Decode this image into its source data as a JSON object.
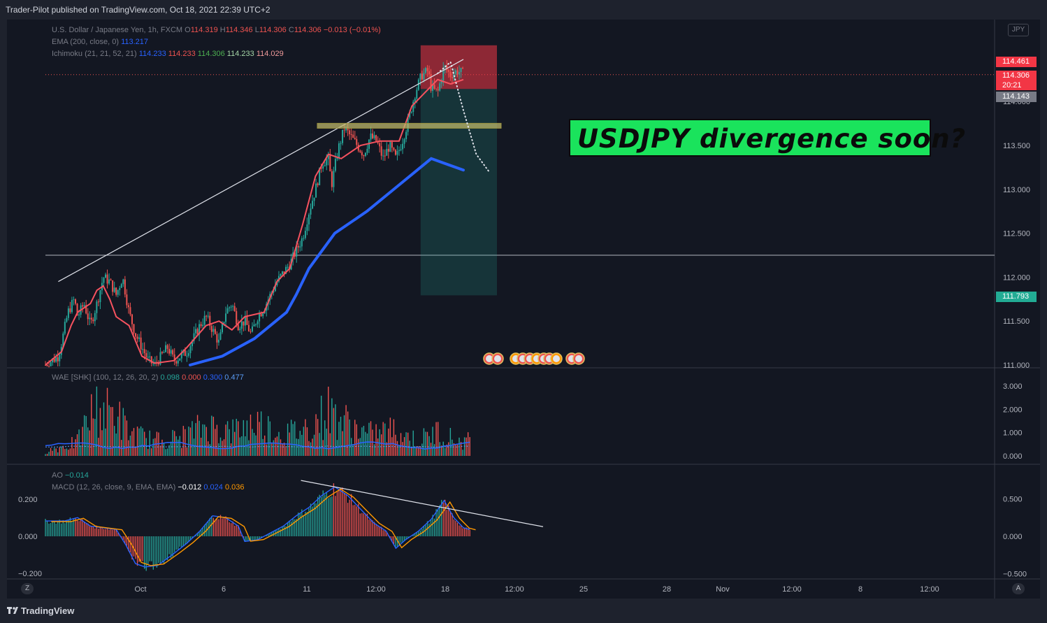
{
  "header": {
    "published": "Trader-Pilot published on TradingView.com, Oct 18, 2021 22:39 UTC+2"
  },
  "footer": {
    "brand": "TradingView",
    "left_btn": "Z",
    "right_btn": "A"
  },
  "legend": {
    "symbol": "U.S. Dollar / Japanese Yen, 1h, FXCM",
    "ohlc": [
      {
        "k": "O",
        "v": "114.319"
      },
      {
        "k": "H",
        "v": "114.346"
      },
      {
        "k": "L",
        "v": "114.306"
      },
      {
        "k": "C",
        "v": "114.306"
      }
    ],
    "change": "−0.013 (−0.01%)",
    "ema_label": "EMA (200, close, 0)",
    "ema_value": "113.217",
    "ichimoku_label": "Ichimoku (21, 21, 52, 21)",
    "ichimoku_values": [
      "114.233",
      "114.233",
      "114.306",
      "114.233",
      "114.029"
    ],
    "wae_label": "WAE [SHK] (100, 12, 26, 20, 2)",
    "wae_values": [
      "0.098",
      "0.000",
      "0.300",
      "0.477"
    ],
    "ao_label": "AO",
    "ao_value": "−0.014",
    "macd_label": "MACD (12, 26, close, 9, EMA, EMA)",
    "macd_values": [
      "−0.012",
      "0.024",
      "0.036"
    ]
  },
  "currency_badge": "JPY",
  "annotation": "USDJPY divergence soon?",
  "price_tags": [
    {
      "label": "114.461",
      "color": "#f23645",
      "value": 114.461
    },
    {
      "label": "114.306",
      "sub": "20:21",
      "color": "#f23645",
      "value": 114.306
    },
    {
      "label": "114.143",
      "color": "#787b86",
      "value": 114.143
    },
    {
      "label": "111.793",
      "color": "#22ab94",
      "value": 111.793
    }
  ],
  "colors": {
    "up": "#26a69a",
    "down": "#ef5350",
    "ema": "#2962ff",
    "kijun": "#f7525f",
    "bg": "#131722"
  },
  "chart_data": [
    {
      "type": "candlestick",
      "pane": "price",
      "title": "U.S. Dollar / Japanese Yen, 1h, FXCM",
      "ylim": [
        111.0,
        114.6
      ],
      "y_ticks": [
        "114.000",
        "113.500",
        "113.000",
        "112.500",
        "112.000",
        "111.500",
        "111.000"
      ],
      "y_tick_values": [
        114.0,
        113.5,
        113.0,
        112.5,
        112.0,
        111.5,
        111.0
      ],
      "x_ticks": [
        "Oct",
        "6",
        "11",
        "12:00",
        "18",
        "12:00",
        "25",
        "28",
        "Nov",
        "12:00",
        "8",
        "12:00"
      ],
      "price_path": [
        [
          0,
          111.0
        ],
        [
          2,
          111.05
        ],
        [
          4,
          111.1
        ],
        [
          5,
          111.25
        ],
        [
          7,
          111.6
        ],
        [
          9,
          111.75
        ],
        [
          10,
          111.55
        ],
        [
          12,
          111.7
        ],
        [
          14,
          111.45
        ],
        [
          16,
          111.7
        ],
        [
          18,
          112.0
        ],
        [
          20,
          111.95
        ],
        [
          22,
          111.8
        ],
        [
          24,
          112.0
        ],
        [
          26,
          111.6
        ],
        [
          28,
          111.35
        ],
        [
          30,
          111.2
        ],
        [
          32,
          111.05
        ],
        [
          34,
          111.0
        ],
        [
          36,
          111.1
        ],
        [
          38,
          111.2
        ],
        [
          40,
          111.05
        ],
        [
          42,
          111.1
        ],
        [
          44,
          111.15
        ],
        [
          46,
          111.3
        ],
        [
          48,
          111.45
        ],
        [
          50,
          111.55
        ],
        [
          52,
          111.4
        ],
        [
          54,
          111.25
        ],
        [
          56,
          111.6
        ],
        [
          58,
          111.7
        ],
        [
          60,
          111.45
        ],
        [
          62,
          111.5
        ],
        [
          64,
          111.35
        ],
        [
          66,
          111.55
        ],
        [
          68,
          111.65
        ],
        [
          70,
          111.8
        ],
        [
          72,
          111.95
        ],
        [
          74,
          112.05
        ],
        [
          76,
          112.15
        ],
        [
          78,
          112.3
        ],
        [
          80,
          112.45
        ],
        [
          82,
          112.75
        ],
        [
          84,
          113.0
        ],
        [
          86,
          113.3
        ],
        [
          88,
          113.35
        ],
        [
          89,
          113.05
        ],
        [
          91,
          113.45
        ],
        [
          93,
          113.7
        ],
        [
          95,
          113.6
        ],
        [
          97,
          113.5
        ],
        [
          99,
          113.4
        ],
        [
          101,
          113.6
        ],
        [
          103,
          113.55
        ],
        [
          105,
          113.35
        ],
        [
          107,
          113.5
        ],
        [
          109,
          113.35
        ],
        [
          111,
          113.55
        ],
        [
          113,
          113.8
        ],
        [
          115,
          114.1
        ],
        [
          117,
          114.3
        ],
        [
          119,
          114.35
        ],
        [
          120,
          114.15
        ],
        [
          122,
          114.1
        ],
        [
          124,
          114.4
        ],
        [
          126,
          114.3
        ],
        [
          128,
          114.35
        ],
        [
          130,
          114.32
        ]
      ],
      "ema200_path": [
        [
          45,
          111.0
        ],
        [
          55,
          111.1
        ],
        [
          65,
          111.3
        ],
        [
          75,
          111.6
        ],
        [
          78,
          111.8
        ],
        [
          82,
          112.1
        ],
        [
          90,
          112.5
        ],
        [
          100,
          112.75
        ],
        [
          110,
          113.05
        ],
        [
          120,
          113.35
        ],
        [
          130,
          113.22
        ]
      ],
      "kijun_path": [
        [
          0,
          111.0
        ],
        [
          5,
          111.15
        ],
        [
          8,
          111.45
        ],
        [
          10,
          111.6
        ],
        [
          14,
          111.7
        ],
        [
          16,
          111.85
        ],
        [
          18,
          111.9
        ],
        [
          20,
          111.75
        ],
        [
          22,
          111.55
        ],
        [
          26,
          111.45
        ],
        [
          30,
          111.1
        ],
        [
          34,
          111.02
        ],
        [
          40,
          111.05
        ],
        [
          44,
          111.2
        ],
        [
          50,
          111.45
        ],
        [
          54,
          111.5
        ],
        [
          58,
          111.4
        ],
        [
          62,
          111.55
        ],
        [
          68,
          111.6
        ],
        [
          72,
          111.95
        ],
        [
          76,
          112.1
        ],
        [
          80,
          112.6
        ],
        [
          84,
          113.15
        ],
        [
          88,
          113.4
        ],
        [
          92,
          113.35
        ],
        [
          98,
          113.5
        ],
        [
          104,
          113.55
        ],
        [
          110,
          113.55
        ],
        [
          114,
          113.95
        ],
        [
          118,
          114.1
        ],
        [
          122,
          114.25
        ],
        [
          126,
          114.2
        ],
        [
          130,
          114.25
        ]
      ],
      "trendline": [
        [
          4,
          111.95
        ],
        [
          130,
          114.48
        ]
      ],
      "horizontal_level": 112.25,
      "resistance_zone": {
        "x0": 85,
        "x1": 140,
        "y": 113.72
      },
      "short_position": {
        "x0": 118,
        "x1": 140,
        "entry": 114.306,
        "stop": 114.461,
        "target": 111.793,
        "upper": 114.64,
        "stop_edge": 114.143
      },
      "projection": [
        [
          122,
          114.32
        ],
        [
          126,
          114.45
        ],
        [
          130,
          113.9
        ],
        [
          134,
          113.4
        ],
        [
          138,
          113.2
        ]
      ]
    },
    {
      "type": "bar",
      "pane": "wae",
      "title": "WAE [SHK] (100, 12, 26, 20, 2)",
      "ylim": [
        0,
        3.3
      ],
      "y_ticks": [
        "3.000",
        "2.000",
        "1.000",
        "0.000"
      ],
      "y_tick_values": [
        3.0,
        2.0,
        1.0,
        0.0
      ],
      "peaks": [
        [
          0,
          0.3
        ],
        [
          10,
          0.9
        ],
        [
          15,
          3.1
        ],
        [
          22,
          2.8
        ],
        [
          26,
          1.5
        ],
        [
          34,
          1.0
        ],
        [
          42,
          1.2
        ],
        [
          50,
          2.0
        ],
        [
          58,
          1.6
        ],
        [
          66,
          2.2
        ],
        [
          74,
          1.4
        ],
        [
          82,
          1.9
        ],
        [
          88,
          3.0
        ],
        [
          95,
          2.0
        ],
        [
          100,
          1.4
        ],
        [
          108,
          1.7
        ],
        [
          116,
          1.0
        ],
        [
          122,
          1.6
        ],
        [
          128,
          1.0
        ]
      ],
      "deadzone_level": 0.45
    },
    {
      "type": "histogram",
      "pane": "ao_macd",
      "title": "AO",
      "ylim": [
        -0.2,
        0.3
      ],
      "y_ticks_left": [
        "0.200",
        "0.000",
        "−0.200"
      ],
      "y_ticks_left_values": [
        0.2,
        0.0,
        -0.2
      ],
      "y_ticks_right": [
        "0.500",
        "0.000",
        "−0.500"
      ],
      "macd_path": [
        [
          0,
          0.09
        ],
        [
          6,
          0.09
        ],
        [
          10,
          0.11
        ],
        [
          14,
          0.06
        ],
        [
          18,
          0.05
        ],
        [
          22,
          0.04
        ],
        [
          25,
          -0.05
        ],
        [
          28,
          -0.16
        ],
        [
          31,
          -0.18
        ],
        [
          35,
          -0.17
        ],
        [
          40,
          -0.1
        ],
        [
          44,
          -0.04
        ],
        [
          48,
          0.03
        ],
        [
          52,
          0.12
        ],
        [
          56,
          0.11
        ],
        [
          60,
          0.06
        ],
        [
          62,
          -0.03
        ],
        [
          66,
          -0.02
        ],
        [
          70,
          0.02
        ],
        [
          74,
          0.06
        ],
        [
          78,
          0.12
        ],
        [
          82,
          0.17
        ],
        [
          86,
          0.24
        ],
        [
          90,
          0.29
        ],
        [
          94,
          0.24
        ],
        [
          98,
          0.16
        ],
        [
          102,
          0.08
        ],
        [
          106,
          0.03
        ],
        [
          109,
          -0.07
        ],
        [
          112,
          -0.02
        ],
        [
          116,
          0.03
        ],
        [
          120,
          0.1
        ],
        [
          124,
          0.21
        ],
        [
          127,
          0.11
        ],
        [
          130,
          0.05
        ],
        [
          132,
          0.04
        ]
      ],
      "divergence_line": [
        [
          86,
          0.29
        ],
        [
          140,
          0.15
        ]
      ]
    }
  ]
}
